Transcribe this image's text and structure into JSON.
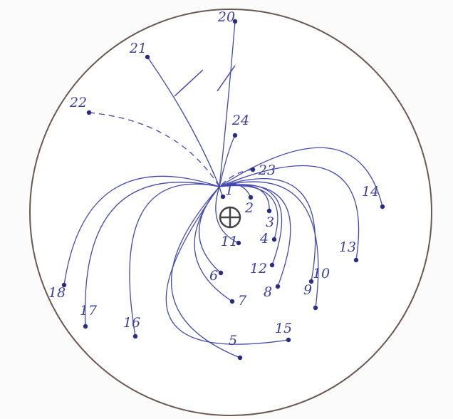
{
  "nodes": [
    {
      "label": "1"
    },
    {
      "label": "2"
    },
    {
      "label": "3"
    },
    {
      "label": "4"
    },
    {
      "label": "5"
    },
    {
      "label": "6"
    },
    {
      "label": "7"
    },
    {
      "label": "8"
    },
    {
      "label": "9"
    },
    {
      "label": "10"
    },
    {
      "label": "11"
    },
    {
      "label": "12"
    },
    {
      "label": "13"
    },
    {
      "label": "14"
    },
    {
      "label": "15"
    },
    {
      "label": "16"
    },
    {
      "label": "17"
    },
    {
      "label": "18"
    },
    {
      "label": "20"
    },
    {
      "label": "21"
    },
    {
      "label": "22"
    },
    {
      "label": "23"
    },
    {
      "label": "24"
    }
  ]
}
